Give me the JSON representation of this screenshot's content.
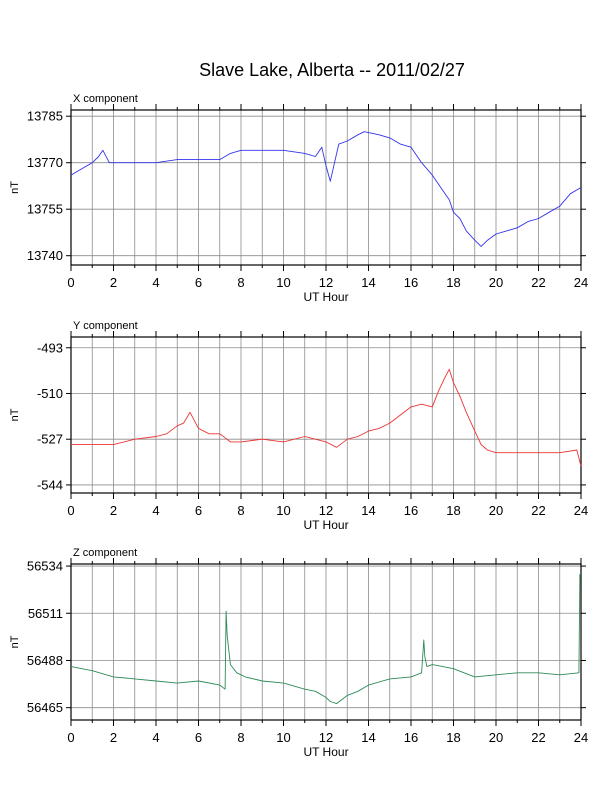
{
  "title": "Slave Lake, Alberta -- 2011/02/27",
  "chart_data": [
    {
      "type": "line",
      "panel_label": "X component",
      "xlabel": "UT Hour",
      "ylabel": "nT",
      "xlim": [
        0,
        24
      ],
      "ylim": [
        13737,
        13787
      ],
      "xticks": [
        0,
        2,
        4,
        6,
        8,
        10,
        12,
        14,
        16,
        18,
        20,
        22,
        24
      ],
      "yticks": [
        13740,
        13755,
        13770,
        13785
      ],
      "grid": true,
      "color": "#3333ee",
      "series": [
        {
          "x": [
            0,
            0.5,
            1.0,
            1.3,
            1.5,
            1.8,
            2.2,
            3,
            4,
            5,
            6,
            7,
            7.5,
            8,
            9,
            10,
            11,
            11.5,
            11.8,
            12,
            12.2,
            12.4,
            12.6,
            13,
            13.5,
            13.8,
            14.5,
            15,
            15.5,
            16,
            16.5,
            17,
            17.5,
            17.8,
            18,
            18.3,
            18.6,
            19,
            19.3,
            19.6,
            20,
            20.5,
            21,
            21.5,
            22,
            22.5,
            23,
            23.5,
            24
          ],
          "values": [
            13766,
            13768,
            13770,
            13772,
            13774,
            13770,
            13770,
            13770,
            13770,
            13771,
            13771,
            13771,
            13773,
            13774,
            13774,
            13774,
            13773,
            13772,
            13775,
            13769,
            13764,
            13770,
            13776,
            13777,
            13779,
            13780,
            13779,
            13778,
            13776,
            13775,
            13770,
            13766,
            13761,
            13758,
            13754,
            13752,
            13748,
            13745,
            13743,
            13745,
            13747,
            13748,
            13749,
            13751,
            13752,
            13754,
            13756,
            13760,
            13762
          ]
        }
      ]
    },
    {
      "type": "line",
      "panel_label": "Y component",
      "xlabel": "UT Hour",
      "ylabel": "nT",
      "xlim": [
        0,
        24
      ],
      "ylim": [
        -547,
        -489
      ],
      "xticks": [
        0,
        2,
        4,
        6,
        8,
        10,
        12,
        14,
        16,
        18,
        20,
        22,
        24
      ],
      "yticks": [
        -493,
        -510,
        -527,
        -544
      ],
      "grid": true,
      "color": "#ee3333",
      "series": [
        {
          "x": [
            0,
            1,
            2,
            3,
            4,
            4.5,
            5,
            5.3,
            5.6,
            6,
            6.5,
            7,
            7.5,
            8,
            9,
            10,
            11,
            11.5,
            12,
            12.5,
            13,
            13.5,
            14,
            14.5,
            15,
            15.5,
            16,
            16.5,
            17,
            17.3,
            17.6,
            17.8,
            18,
            18.3,
            18.6,
            19,
            19.3,
            19.6,
            20,
            20.5,
            21,
            22,
            23,
            23.8,
            24
          ],
          "values": [
            -529,
            -529,
            -529,
            -527,
            -526,
            -525,
            -522,
            -521,
            -517,
            -523,
            -525,
            -525,
            -528,
            -528,
            -527,
            -528,
            -526,
            -527,
            -528,
            -530,
            -527,
            -526,
            -524,
            -523,
            -521,
            -518,
            -515,
            -514,
            -515,
            -509,
            -504,
            -501,
            -506,
            -511,
            -517,
            -524,
            -529,
            -531,
            -532,
            -532,
            -532,
            -532,
            -532,
            -531,
            -537
          ]
        }
      ]
    },
    {
      "type": "line",
      "panel_label": "Z component",
      "xlabel": "UT Hour",
      "ylabel": "nT",
      "xlim": [
        0,
        24
      ],
      "ylim": [
        -0.5,
        0.5
      ],
      "ylim_actual": [
        56459,
        56535
      ],
      "xticks": [
        0,
        2,
        4,
        6,
        8,
        10,
        12,
        14,
        16,
        18,
        20,
        22,
        24
      ],
      "yticks": [
        56465,
        56488,
        56511,
        56534
      ],
      "grid": true,
      "color": "#2e8b57",
      "series": [
        {
          "x": [
            0,
            1,
            2,
            3,
            4,
            5,
            6,
            7,
            7.25,
            7.3,
            7.35,
            7.5,
            7.8,
            8.2,
            9,
            10,
            11,
            11.5,
            12,
            12.2,
            12.5,
            13,
            13.5,
            14,
            15,
            16,
            16.5,
            16.6,
            16.65,
            16.75,
            17,
            17.5,
            18,
            18.5,
            19,
            20,
            21,
            22,
            23,
            23.9,
            23.95,
            24
          ],
          "values": [
            56485,
            56483,
            56480,
            56479,
            56478,
            56477,
            56478,
            56476,
            56474,
            56512,
            56500,
            56486,
            56482,
            56480,
            56478,
            56477,
            56474,
            56473,
            56470,
            56468,
            56467,
            56471,
            56473,
            56476,
            56479,
            56480,
            56482,
            56498,
            56490,
            56485,
            56486,
            56485,
            56484,
            56482,
            56480,
            56481,
            56482,
            56482,
            56481,
            56482,
            56530,
            56530
          ]
        }
      ]
    }
  ]
}
